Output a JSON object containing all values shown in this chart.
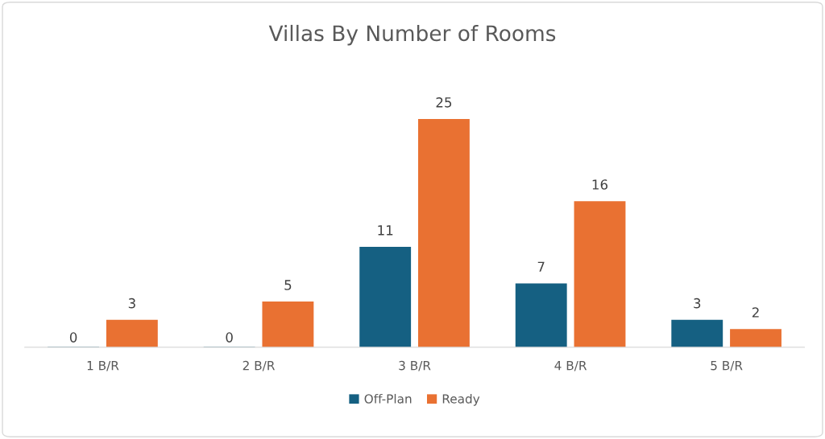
{
  "chart_data": {
    "type": "bar",
    "title": "Villas By Number of Rooms",
    "categories": [
      "1 B/R",
      "2 B/R",
      "3 B/R",
      "4 B/R",
      "5 B/R"
    ],
    "series": [
      {
        "name": "Off-Plan",
        "color": "#156082",
        "values": [
          0,
          0,
          11,
          7,
          3
        ]
      },
      {
        "name": "Ready",
        "color": "#e97132",
        "values": [
          3,
          5,
          25,
          16,
          2
        ]
      }
    ],
    "data_labels": true,
    "legend": "bottom",
    "grid": false
  }
}
